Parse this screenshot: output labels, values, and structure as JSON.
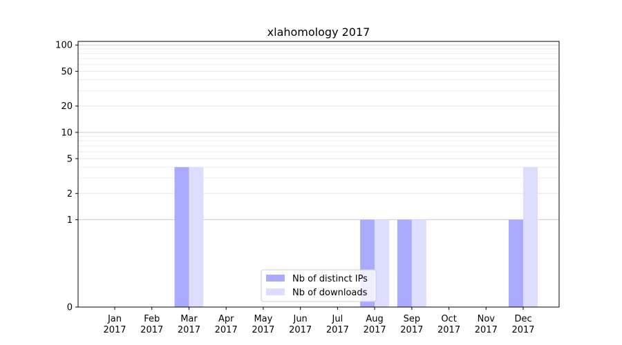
{
  "chart_data": {
    "type": "bar",
    "title": "xlahomology 2017",
    "xlabel": "",
    "ylabel": "",
    "yscale": "symlog",
    "ylim": [
      0,
      110
    ],
    "yticks": [
      0,
      1,
      2,
      5,
      10,
      20,
      50,
      100
    ],
    "grid": true,
    "legend_position": "bottom-center",
    "categories": [
      "Jan\n2017",
      "Feb\n2017",
      "Mar\n2017",
      "Apr\n2017",
      "May\n2017",
      "Jun\n2017",
      "Jul\n2017",
      "Aug\n2017",
      "Sep\n2017",
      "Oct\n2017",
      "Nov\n2017",
      "Dec\n2017"
    ],
    "series": [
      {
        "name": "Nb of distinct IPs",
        "color": "#aaaaff",
        "values": [
          0,
          0,
          4,
          0,
          0,
          0,
          0,
          1,
          1,
          0,
          0,
          1
        ]
      },
      {
        "name": "Nb of downloads",
        "color": "#ddddff",
        "values": [
          0,
          0,
          4,
          0,
          0,
          0,
          0,
          1,
          1,
          0,
          0,
          4
        ]
      }
    ]
  }
}
